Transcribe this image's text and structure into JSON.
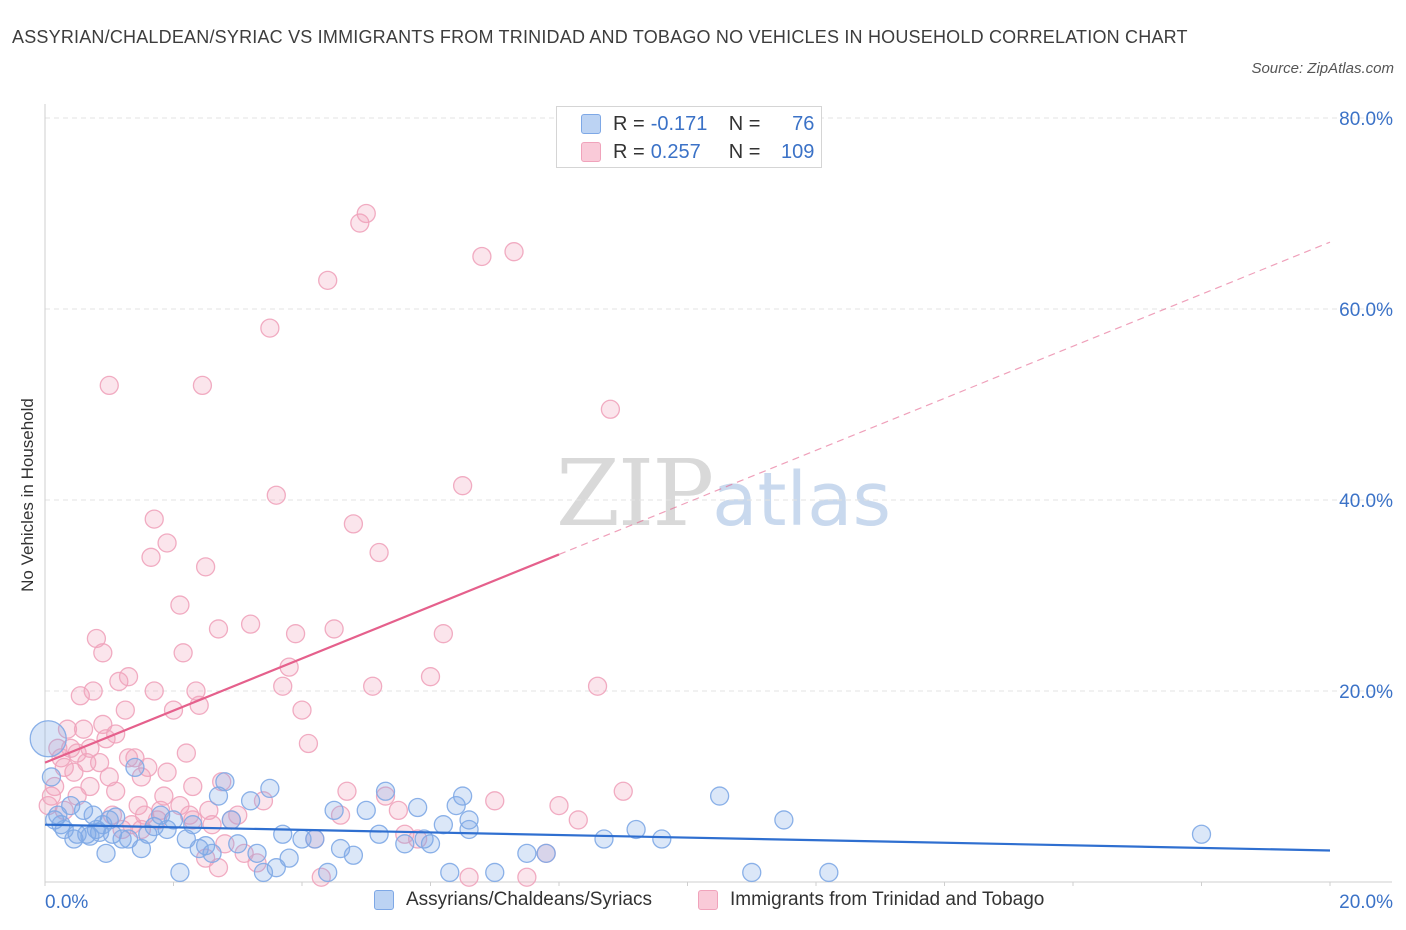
{
  "title": "ASSYRIAN/CHALDEAN/SYRIAC VS IMMIGRANTS FROM TRINIDAD AND TOBAGO NO VEHICLES IN HOUSEHOLD CORRELATION CHART",
  "source": "Source: ZipAtlas.com",
  "watermark": {
    "zip": "ZIP",
    "atlas": "atlas"
  },
  "legend": {
    "r_label": "R =",
    "n_label": "N =",
    "rows": [
      {
        "r": "-0.171",
        "n": "76",
        "color": "#a7c4ee"
      },
      {
        "r": "0.257",
        "n": "109",
        "color": "#f5b8cb"
      }
    ]
  },
  "chart_data": {
    "type": "scatter",
    "title": "ASSYRIAN/CHALDEAN/SYRIAC VS IMMIGRANTS FROM TRINIDAD AND TOBAGO NO VEHICLES IN HOUSEHOLD CORRELATION CHART",
    "xlabel": "",
    "ylabel": "No Vehicles in Household",
    "xlim": [
      0,
      20
    ],
    "ylim": [
      0,
      80
    ],
    "x_tick_labels": [
      "0.0%",
      "20.0%"
    ],
    "y_tick_labels": [
      "20.0%",
      "40.0%",
      "60.0%",
      "80.0%"
    ],
    "y_ticks": [
      20,
      40,
      60,
      80
    ],
    "grid": true,
    "legend_position": "bottom",
    "series": [
      {
        "name": "Assyrians/Chaldeans/Syriacs",
        "color": "#7ea8e6",
        "line_color": "#2f6fd0",
        "trend": {
          "x0": 0,
          "y0": 6.0,
          "x1": 20,
          "y1": 3.3,
          "dashed_from": null
        },
        "points": [
          [
            0.05,
            15.0
          ],
          [
            0.1,
            11.0
          ],
          [
            0.15,
            6.5
          ],
          [
            0.2,
            7.0
          ],
          [
            0.25,
            6.0
          ],
          [
            0.3,
            5.5
          ],
          [
            0.4,
            8.0
          ],
          [
            0.45,
            4.5
          ],
          [
            0.5,
            5.0
          ],
          [
            0.6,
            7.5
          ],
          [
            0.65,
            5.0
          ],
          [
            0.7,
            4.8
          ],
          [
            0.75,
            7.0
          ],
          [
            0.8,
            5.5
          ],
          [
            0.85,
            5.2
          ],
          [
            0.9,
            6.0
          ],
          [
            0.95,
            3.0
          ],
          [
            1.0,
            6.5
          ],
          [
            1.05,
            5.0
          ],
          [
            1.1,
            6.8
          ],
          [
            1.2,
            4.5
          ],
          [
            1.3,
            4.5
          ],
          [
            1.4,
            12.0
          ],
          [
            1.5,
            3.5
          ],
          [
            1.6,
            5.0
          ],
          [
            1.7,
            5.8
          ],
          [
            1.8,
            7.0
          ],
          [
            1.9,
            5.5
          ],
          [
            2.0,
            6.5
          ],
          [
            2.1,
            1.0
          ],
          [
            2.2,
            4.5
          ],
          [
            2.3,
            6.0
          ],
          [
            2.4,
            3.5
          ],
          [
            2.5,
            3.8
          ],
          [
            2.6,
            3.0
          ],
          [
            2.7,
            9.0
          ],
          [
            2.8,
            10.5
          ],
          [
            2.9,
            6.5
          ],
          [
            3.0,
            4.0
          ],
          [
            3.2,
            8.5
          ],
          [
            3.3,
            3.0
          ],
          [
            3.4,
            1.0
          ],
          [
            3.5,
            9.8
          ],
          [
            3.6,
            1.5
          ],
          [
            3.7,
            5.0
          ],
          [
            3.8,
            2.5
          ],
          [
            4.0,
            4.5
          ],
          [
            4.2,
            4.5
          ],
          [
            4.4,
            1.0
          ],
          [
            4.5,
            7.5
          ],
          [
            4.6,
            3.5
          ],
          [
            4.8,
            2.8
          ],
          [
            5.0,
            7.5
          ],
          [
            5.2,
            5.0
          ],
          [
            5.3,
            9.5
          ],
          [
            5.6,
            4.0
          ],
          [
            5.8,
            7.8
          ],
          [
            5.9,
            4.5
          ],
          [
            6.0,
            4.0
          ],
          [
            6.2,
            6.0
          ],
          [
            6.3,
            1.0
          ],
          [
            6.4,
            8.0
          ],
          [
            6.5,
            9.0
          ],
          [
            6.6,
            6.5
          ],
          [
            6.6,
            5.5
          ],
          [
            7.0,
            1.0
          ],
          [
            7.5,
            3.0
          ],
          [
            7.8,
            3.0
          ],
          [
            8.7,
            4.5
          ],
          [
            9.2,
            5.5
          ],
          [
            9.6,
            4.5
          ],
          [
            10.5,
            9.0
          ],
          [
            11.0,
            1.0
          ],
          [
            11.5,
            6.5
          ],
          [
            12.2,
            1.0
          ],
          [
            18.0,
            5.0
          ]
        ]
      },
      {
        "name": "Immigrants from Trinidad and Tobago",
        "color": "#f0a3bb",
        "line_color": "#e5608c",
        "trend": {
          "x0": 0,
          "y0": 12.5,
          "x1": 20,
          "y1": 67.0,
          "dashed_from": 8.0
        },
        "points": [
          [
            0.05,
            8.0
          ],
          [
            0.1,
            9.0
          ],
          [
            0.15,
            10.0
          ],
          [
            0.2,
            14.0
          ],
          [
            0.25,
            13.0
          ],
          [
            0.3,
            12.0
          ],
          [
            0.35,
            16.0
          ],
          [
            0.4,
            14.0
          ],
          [
            0.45,
            11.5
          ],
          [
            0.5,
            13.5
          ],
          [
            0.55,
            19.5
          ],
          [
            0.6,
            16.0
          ],
          [
            0.65,
            12.5
          ],
          [
            0.7,
            14.0
          ],
          [
            0.75,
            20.0
          ],
          [
            0.8,
            25.5
          ],
          [
            0.85,
            12.5
          ],
          [
            0.9,
            24.0
          ],
          [
            0.95,
            15.0
          ],
          [
            1.0,
            11.0
          ],
          [
            1.05,
            7.0
          ],
          [
            1.1,
            15.5
          ],
          [
            1.15,
            21.0
          ],
          [
            1.2,
            5.5
          ],
          [
            1.25,
            18.0
          ],
          [
            1.3,
            21.5
          ],
          [
            1.35,
            6.0
          ],
          [
            1.4,
            13.0
          ],
          [
            1.45,
            8.0
          ],
          [
            1.5,
            11.0
          ],
          [
            1.55,
            7.0
          ],
          [
            1.6,
            12.0
          ],
          [
            1.65,
            34.0
          ],
          [
            1.7,
            38.0
          ],
          [
            1.75,
            6.5
          ],
          [
            1.8,
            7.5
          ],
          [
            1.85,
            9.0
          ],
          [
            1.9,
            35.5
          ],
          [
            2.0,
            18.0
          ],
          [
            2.1,
            29.0
          ],
          [
            2.15,
            24.0
          ],
          [
            2.2,
            13.5
          ],
          [
            2.25,
            7.0
          ],
          [
            2.3,
            10.0
          ],
          [
            2.35,
            20.0
          ],
          [
            2.4,
            18.5
          ],
          [
            2.45,
            52.0
          ],
          [
            2.5,
            33.0
          ],
          [
            2.55,
            7.5
          ],
          [
            2.6,
            6.0
          ],
          [
            2.7,
            26.5
          ],
          [
            2.75,
            10.5
          ],
          [
            2.8,
            4.0
          ],
          [
            2.9,
            6.5
          ],
          [
            3.0,
            7.0
          ],
          [
            3.1,
            3.0
          ],
          [
            3.2,
            27.0
          ],
          [
            3.3,
            2.0
          ],
          [
            3.4,
            8.5
          ],
          [
            3.5,
            58.0
          ],
          [
            3.6,
            40.5
          ],
          [
            3.7,
            20.5
          ],
          [
            3.8,
            22.5
          ],
          [
            3.9,
            26.0
          ],
          [
            4.0,
            18.0
          ],
          [
            4.1,
            14.5
          ],
          [
            4.2,
            4.5
          ],
          [
            4.3,
            0.5
          ],
          [
            4.4,
            63.0
          ],
          [
            4.5,
            26.5
          ],
          [
            4.6,
            7.0
          ],
          [
            4.7,
            9.5
          ],
          [
            4.8,
            37.5
          ],
          [
            4.9,
            69.0
          ],
          [
            5.0,
            70.0
          ],
          [
            5.1,
            20.5
          ],
          [
            5.2,
            34.5
          ],
          [
            5.3,
            9.0
          ],
          [
            5.5,
            7.5
          ],
          [
            5.6,
            5.0
          ],
          [
            5.8,
            4.5
          ],
          [
            6.0,
            21.5
          ],
          [
            6.2,
            26.0
          ],
          [
            6.5,
            41.5
          ],
          [
            6.6,
            0.5
          ],
          [
            6.8,
            65.5
          ],
          [
            7.0,
            8.5
          ],
          [
            7.3,
            66.0
          ],
          [
            7.5,
            0.5
          ],
          [
            7.8,
            3.0
          ],
          [
            8.0,
            8.0
          ],
          [
            8.3,
            6.5
          ],
          [
            8.6,
            20.5
          ],
          [
            8.8,
            49.5
          ],
          [
            9.0,
            9.5
          ],
          [
            1.0,
            52.0
          ],
          [
            0.3,
            7.5
          ],
          [
            0.5,
            9.0
          ],
          [
            0.7,
            10.0
          ],
          [
            0.9,
            16.5
          ],
          [
            1.1,
            9.5
          ],
          [
            1.3,
            13.0
          ],
          [
            1.5,
            5.5
          ],
          [
            1.7,
            20.0
          ],
          [
            1.9,
            11.5
          ],
          [
            2.1,
            8.0
          ],
          [
            2.3,
            6.5
          ],
          [
            2.5,
            2.5
          ],
          [
            2.7,
            1.5
          ]
        ]
      }
    ]
  }
}
